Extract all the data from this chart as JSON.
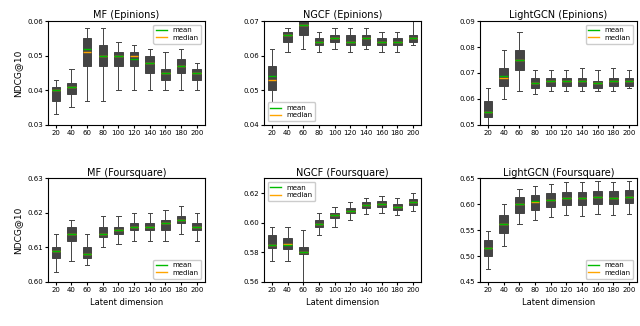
{
  "titles": [
    "MF (Epinions)",
    "NGCF (Epinions)",
    "LightGCN (Epinions)",
    "MF (Foursquare)",
    "NGCF (Foursquare)",
    "LightGCN (Foursquare)"
  ],
  "ylabel_top": "NDCG@10",
  "ylabel_bottom": "NDCG@10",
  "xlabel": "Latent dimension",
  "x_ticks": [
    20,
    40,
    60,
    80,
    100,
    120,
    140,
    160,
    180,
    200
  ],
  "mean_color": "#00bb00",
  "median_color": "#ffa500",
  "boxes": {
    "MF_Epinions": {
      "q1": [
        0.037,
        0.039,
        0.047,
        0.047,
        0.047,
        0.047,
        0.045,
        0.043,
        0.045,
        0.043
      ],
      "median": [
        0.04,
        0.041,
        0.051,
        0.05,
        0.05,
        0.05,
        0.048,
        0.045,
        0.047,
        0.045
      ],
      "mean": [
        0.04,
        0.041,
        0.052,
        0.05,
        0.05,
        0.049,
        0.048,
        0.045,
        0.047,
        0.045
      ],
      "q3": [
        0.041,
        0.042,
        0.055,
        0.053,
        0.051,
        0.051,
        0.05,
        0.046,
        0.049,
        0.046
      ],
      "whislo": [
        0.033,
        0.035,
        0.037,
        0.037,
        0.04,
        0.04,
        0.04,
        0.04,
        0.04,
        0.04
      ],
      "whishi": [
        0.043,
        0.046,
        0.058,
        0.058,
        0.054,
        0.053,
        0.052,
        0.051,
        0.052,
        0.048
      ],
      "ylim": [
        0.03,
        0.06
      ],
      "yticks": [
        0.03,
        0.04,
        0.05,
        0.06
      ],
      "legend_loc": "upper right"
    },
    "NGCF_Epinions": {
      "q1": [
        0.05,
        0.064,
        0.066,
        0.063,
        0.064,
        0.063,
        0.063,
        0.063,
        0.063,
        0.064
      ],
      "median": [
        0.053,
        0.066,
        0.069,
        0.064,
        0.065,
        0.064,
        0.065,
        0.064,
        0.064,
        0.065
      ],
      "mean": [
        0.054,
        0.066,
        0.069,
        0.064,
        0.065,
        0.064,
        0.065,
        0.064,
        0.064,
        0.065
      ],
      "q3": [
        0.057,
        0.067,
        0.07,
        0.065,
        0.066,
        0.066,
        0.066,
        0.065,
        0.065,
        0.066
      ],
      "whislo": [
        0.046,
        0.061,
        0.062,
        0.061,
        0.062,
        0.061,
        0.062,
        0.061,
        0.061,
        0.063
      ],
      "whishi": [
        0.062,
        0.068,
        0.073,
        0.067,
        0.068,
        0.068,
        0.068,
        0.067,
        0.067,
        0.071
      ],
      "ylim": [
        0.04,
        0.07
      ],
      "yticks": [
        0.04,
        0.05,
        0.06,
        0.07
      ],
      "legend_loc": "lower left"
    },
    "LightGCN_Epinions": {
      "q1": [
        0.053,
        0.065,
        0.071,
        0.064,
        0.065,
        0.065,
        0.065,
        0.064,
        0.065,
        0.065
      ],
      "median": [
        0.055,
        0.068,
        0.075,
        0.066,
        0.067,
        0.067,
        0.067,
        0.066,
        0.067,
        0.067
      ],
      "mean": [
        0.055,
        0.069,
        0.075,
        0.066,
        0.067,
        0.067,
        0.067,
        0.066,
        0.067,
        0.067
      ],
      "q3": [
        0.059,
        0.072,
        0.079,
        0.068,
        0.068,
        0.068,
        0.068,
        0.067,
        0.068,
        0.068
      ],
      "whislo": [
        0.049,
        0.06,
        0.063,
        0.062,
        0.063,
        0.063,
        0.063,
        0.063,
        0.063,
        0.064
      ],
      "whishi": [
        0.064,
        0.079,
        0.086,
        0.071,
        0.071,
        0.071,
        0.072,
        0.071,
        0.072,
        0.071
      ],
      "ylim": [
        0.05,
        0.09
      ],
      "yticks": [
        0.05,
        0.06,
        0.07,
        0.08,
        0.09
      ],
      "legend_loc": "upper right"
    },
    "MF_Foursquare": {
      "q1": [
        0.607,
        0.612,
        0.607,
        0.613,
        0.614,
        0.615,
        0.615,
        0.615,
        0.617,
        0.615
      ],
      "median": [
        0.609,
        0.614,
        0.608,
        0.614,
        0.615,
        0.616,
        0.616,
        0.617,
        0.618,
        0.616
      ],
      "mean": [
        0.609,
        0.614,
        0.608,
        0.614,
        0.615,
        0.616,
        0.616,
        0.617,
        0.618,
        0.616
      ],
      "q3": [
        0.61,
        0.616,
        0.61,
        0.616,
        0.616,
        0.617,
        0.617,
        0.618,
        0.619,
        0.617
      ],
      "whislo": [
        0.603,
        0.606,
        0.605,
        0.61,
        0.611,
        0.612,
        0.612,
        0.612,
        0.614,
        0.612
      ],
      "whishi": [
        0.614,
        0.618,
        0.614,
        0.619,
        0.619,
        0.62,
        0.62,
        0.621,
        0.622,
        0.62
      ],
      "ylim": [
        0.6,
        0.63
      ],
      "yticks": [
        0.6,
        0.61,
        0.62,
        0.63
      ],
      "legend_loc": "lower right"
    },
    "NGCF_Foursquare": {
      "q1": [
        0.583,
        0.582,
        0.579,
        0.597,
        0.603,
        0.607,
        0.61,
        0.611,
        0.609,
        0.612
      ],
      "median": [
        0.585,
        0.586,
        0.58,
        0.599,
        0.605,
        0.608,
        0.612,
        0.613,
        0.611,
        0.614
      ],
      "mean": [
        0.585,
        0.585,
        0.58,
        0.599,
        0.605,
        0.608,
        0.612,
        0.613,
        0.611,
        0.614
      ],
      "q3": [
        0.592,
        0.59,
        0.584,
        0.602,
        0.607,
        0.61,
        0.614,
        0.615,
        0.613,
        0.616
      ],
      "whislo": [
        0.574,
        0.574,
        0.553,
        0.592,
        0.597,
        0.602,
        0.606,
        0.607,
        0.605,
        0.608
      ],
      "whishi": [
        0.597,
        0.597,
        0.595,
        0.607,
        0.611,
        0.614,
        0.617,
        0.618,
        0.617,
        0.62
      ],
      "ylim": [
        0.56,
        0.63
      ],
      "yticks": [
        0.56,
        0.58,
        0.6,
        0.62
      ],
      "legend_loc": "upper left"
    },
    "LightGCN_Foursquare": {
      "q1": [
        0.5,
        0.545,
        0.583,
        0.59,
        0.595,
        0.598,
        0.598,
        0.6,
        0.601,
        0.602
      ],
      "median": [
        0.515,
        0.563,
        0.6,
        0.605,
        0.609,
        0.612,
        0.612,
        0.614,
        0.613,
        0.615
      ],
      "mean": [
        0.515,
        0.563,
        0.6,
        0.606,
        0.609,
        0.612,
        0.612,
        0.614,
        0.613,
        0.615
      ],
      "q3": [
        0.532,
        0.58,
        0.615,
        0.619,
        0.622,
        0.624,
        0.624,
        0.626,
        0.625,
        0.627
      ],
      "whislo": [
        0.476,
        0.52,
        0.563,
        0.57,
        0.575,
        0.579,
        0.578,
        0.581,
        0.58,
        0.581
      ],
      "whishi": [
        0.548,
        0.6,
        0.63,
        0.636,
        0.64,
        0.643,
        0.643,
        0.645,
        0.644,
        0.646
      ],
      "ylim": [
        0.45,
        0.65
      ],
      "yticks": [
        0.45,
        0.5,
        0.55,
        0.6,
        0.65
      ],
      "legend_loc": "lower right"
    }
  },
  "subplot_keys": [
    "MF_Epinions",
    "NGCF_Epinions",
    "LightGCN_Epinions",
    "MF_Foursquare",
    "NGCF_Foursquare",
    "LightGCN_Foursquare"
  ]
}
